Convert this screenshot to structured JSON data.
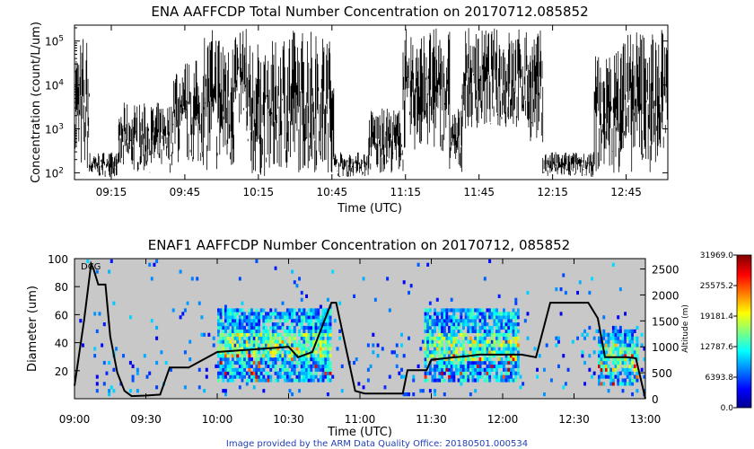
{
  "chart_data": [
    {
      "type": "line",
      "title": "ENA AAFFCDP Total Number Concentration on 20170712.085852",
      "xlabel": "Time (UTC)",
      "ylabel": "Concentration (count/L/um)",
      "yscale": "log",
      "ylim": [
        70,
        230000
      ],
      "xlim": [
        "09:00",
        "13:02"
      ],
      "grid": false,
      "x_ticks": [
        "09:15",
        "09:45",
        "10:15",
        "10:45",
        "11:15",
        "11:45",
        "12:15",
        "12:45"
      ],
      "y_ticks": [
        {
          "value": 100,
          "base": "10",
          "exp": "2"
        },
        {
          "value": 1000,
          "base": "10",
          "exp": "3"
        },
        {
          "value": 10000,
          "base": "10",
          "exp": "4"
        },
        {
          "value": 100000,
          "base": "10",
          "exp": "5"
        }
      ],
      "series_color": "#000000",
      "segments": [
        {
          "start": "09:00",
          "end": "09:06",
          "low": 100,
          "high": 150000
        },
        {
          "start": "09:06",
          "end": "09:18",
          "low": 80,
          "high": 300
        },
        {
          "start": "09:18",
          "end": "09:40",
          "low": 100,
          "high": 4000
        },
        {
          "start": "09:40",
          "end": "09:53",
          "low": 150,
          "high": 40000
        },
        {
          "start": "09:53",
          "end": "10:05",
          "low": 100,
          "high": 200000
        },
        {
          "start": "10:05",
          "end": "10:10",
          "low": 1000,
          "high": 200000
        },
        {
          "start": "10:10",
          "end": "10:24",
          "low": 80,
          "high": 100000
        },
        {
          "start": "10:24",
          "end": "10:46",
          "low": 100,
          "high": 200000
        },
        {
          "start": "10:46",
          "end": "11:00",
          "low": 80,
          "high": 300
        },
        {
          "start": "11:00",
          "end": "11:14",
          "low": 100,
          "high": 3000
        },
        {
          "start": "11:14",
          "end": "11:33",
          "low": 300,
          "high": 200000
        },
        {
          "start": "11:33",
          "end": "11:38",
          "low": 100,
          "high": 3000
        },
        {
          "start": "11:38",
          "end": "12:05",
          "low": 1000,
          "high": 200000
        },
        {
          "start": "12:05",
          "end": "12:11",
          "low": 500,
          "high": 180000
        },
        {
          "start": "12:11",
          "end": "12:32",
          "low": 80,
          "high": 300
        },
        {
          "start": "12:32",
          "end": "12:41",
          "low": 100,
          "high": 60000
        },
        {
          "start": "12:41",
          "end": "13:02",
          "low": 100,
          "high": 200000
        }
      ]
    },
    {
      "type": "heatmap",
      "title": "ENAF1 AAFFCDP Number Concentration on 20170712, 085852",
      "xlabel": "Time (UTC)",
      "ylabel": "Diameter (um)",
      "y2label": "Altitude (m)",
      "xlim": [
        "09:00",
        "13:00"
      ],
      "ylim": [
        0,
        100
      ],
      "y2lim": [
        0,
        2700
      ],
      "x_ticks": [
        "09:00",
        "09:30",
        "10:00",
        "10:30",
        "11:00",
        "11:30",
        "12:00",
        "12:30",
        "13:00"
      ],
      "y_ticks": [
        "20",
        "40",
        "60",
        "80",
        "100"
      ],
      "y2_ticks": [
        "0",
        "500",
        "1000",
        "1500",
        "2000",
        "2500"
      ],
      "annotation": "DCG",
      "colorbar": {
        "ticks": [
          "31969.0",
          "25575.2",
          "19181.4",
          "12787.6",
          "6393.8",
          "0.0"
        ],
        "range": [
          0.0,
          31969.0
        ]
      },
      "background_color": "#c8c8c8",
      "dense_periods": [
        {
          "start": "10:00",
          "end": "10:48",
          "dmin": 12,
          "dmax": 62
        },
        {
          "start": "11:27",
          "end": "12:07",
          "dmin": 10,
          "dmax": 62
        },
        {
          "start": "12:40",
          "end": "12:57",
          "dmin": 8,
          "dmax": 48
        }
      ],
      "altitude_series": {
        "name": "Altitude",
        "x": [
          "09:00",
          "09:04",
          "09:07",
          "09:08",
          "09:10",
          "09:13",
          "09:15",
          "09:18",
          "09:21",
          "09:24",
          "09:30",
          "09:36",
          "09:40",
          "09:48",
          "10:00",
          "10:24",
          "10:30",
          "10:34",
          "10:40",
          "10:45",
          "10:48",
          "10:50",
          "10:58",
          "11:02",
          "11:18",
          "11:20",
          "11:28",
          "11:30",
          "11:40",
          "11:45",
          "11:50",
          "12:00",
          "12:04",
          "12:08",
          "12:14",
          "12:20",
          "12:25",
          "12:30",
          "12:36",
          "12:40",
          "12:43",
          "12:52",
          "12:56",
          "13:00"
        ],
        "y": [
          250,
          1500,
          2600,
          2500,
          2200,
          2200,
          1200,
          500,
          150,
          50,
          60,
          80,
          600,
          600,
          900,
          980,
          1000,
          800,
          900,
          1500,
          1850,
          1850,
          150,
          100,
          100,
          550,
          550,
          750,
          800,
          820,
          850,
          850,
          850,
          850,
          800,
          1850,
          1850,
          1850,
          1850,
          1550,
          800,
          800,
          780,
          0
        ]
      }
    }
  ],
  "footer": {
    "credit": "Image provided by the ARM Data Quality Office: 20180501.000534"
  }
}
